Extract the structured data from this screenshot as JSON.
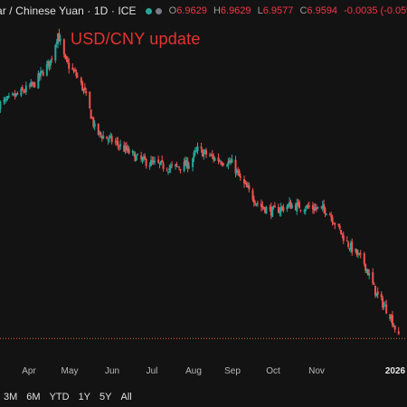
{
  "header": {
    "symbol_title": "ar / Chinese Yuan · 1D · ICE",
    "ohlc": [
      {
        "label": "O",
        "value": "6.9629"
      },
      {
        "label": "H",
        "value": "6.9629"
      },
      {
        "label": "L",
        "value": "6.9577"
      },
      {
        "label": "C",
        "value": "6.9594"
      }
    ],
    "change": "-0.0035 (-0.05%)"
  },
  "annotation": "USD/CNY update",
  "range_buttons": [
    "3M",
    "6M",
    "YTD",
    "1Y",
    "5Y",
    "All"
  ],
  "colors": {
    "up": "#26a69a",
    "down": "#ef5350",
    "annotation": "#e5332f",
    "last_price_line": "#e0633a",
    "background": "#131313"
  },
  "chart_data": {
    "type": "candlestick",
    "title": "",
    "x_tick_labels": [
      "Apr",
      "May",
      "Jun",
      "Jul",
      "Aug",
      "Sep",
      "Oct",
      "Nov",
      "2026"
    ],
    "series": [
      {
        "name": "",
        "close_anchors": [
          {
            "date": "2025-02-20",
            "close": 7.255
          },
          {
            "date": "2025-03-01",
            "close": 7.262
          },
          {
            "date": "2025-03-20",
            "close": 7.28
          },
          {
            "date": "2025-04-03",
            "close": 7.31
          },
          {
            "date": "2025-04-09",
            "close": 7.345
          },
          {
            "date": "2025-04-15",
            "close": 7.31
          },
          {
            "date": "2025-04-25",
            "close": 7.29
          },
          {
            "date": "2025-05-01",
            "close": 7.27
          },
          {
            "date": "2025-05-10",
            "close": 7.22
          },
          {
            "date": "2025-05-25",
            "close": 7.208
          },
          {
            "date": "2025-06-15",
            "close": 7.185
          },
          {
            "date": "2025-07-10",
            "close": 7.175
          },
          {
            "date": "2025-07-25",
            "close": 7.18
          },
          {
            "date": "2025-08-01",
            "close": 7.198
          },
          {
            "date": "2025-08-15",
            "close": 7.187
          },
          {
            "date": "2025-08-30",
            "close": 7.18
          },
          {
            "date": "2025-09-05",
            "close": 7.16
          },
          {
            "date": "2025-09-20",
            "close": 7.128
          },
          {
            "date": "2025-10-01",
            "close": 7.12
          },
          {
            "date": "2025-10-15",
            "close": 7.128
          },
          {
            "date": "2025-11-01",
            "close": 7.125
          },
          {
            "date": "2025-11-15",
            "close": 7.122
          },
          {
            "date": "2025-12-01",
            "close": 7.08
          },
          {
            "date": "2025-12-15",
            "close": 7.055
          },
          {
            "date": "2025-12-25",
            "close": 7.015
          },
          {
            "date": "2026-01-05",
            "close": 6.99
          },
          {
            "date": "2026-01-12",
            "close": 6.96
          }
        ]
      }
    ],
    "last_price": 6.9594,
    "grid": false,
    "legend": "none"
  }
}
